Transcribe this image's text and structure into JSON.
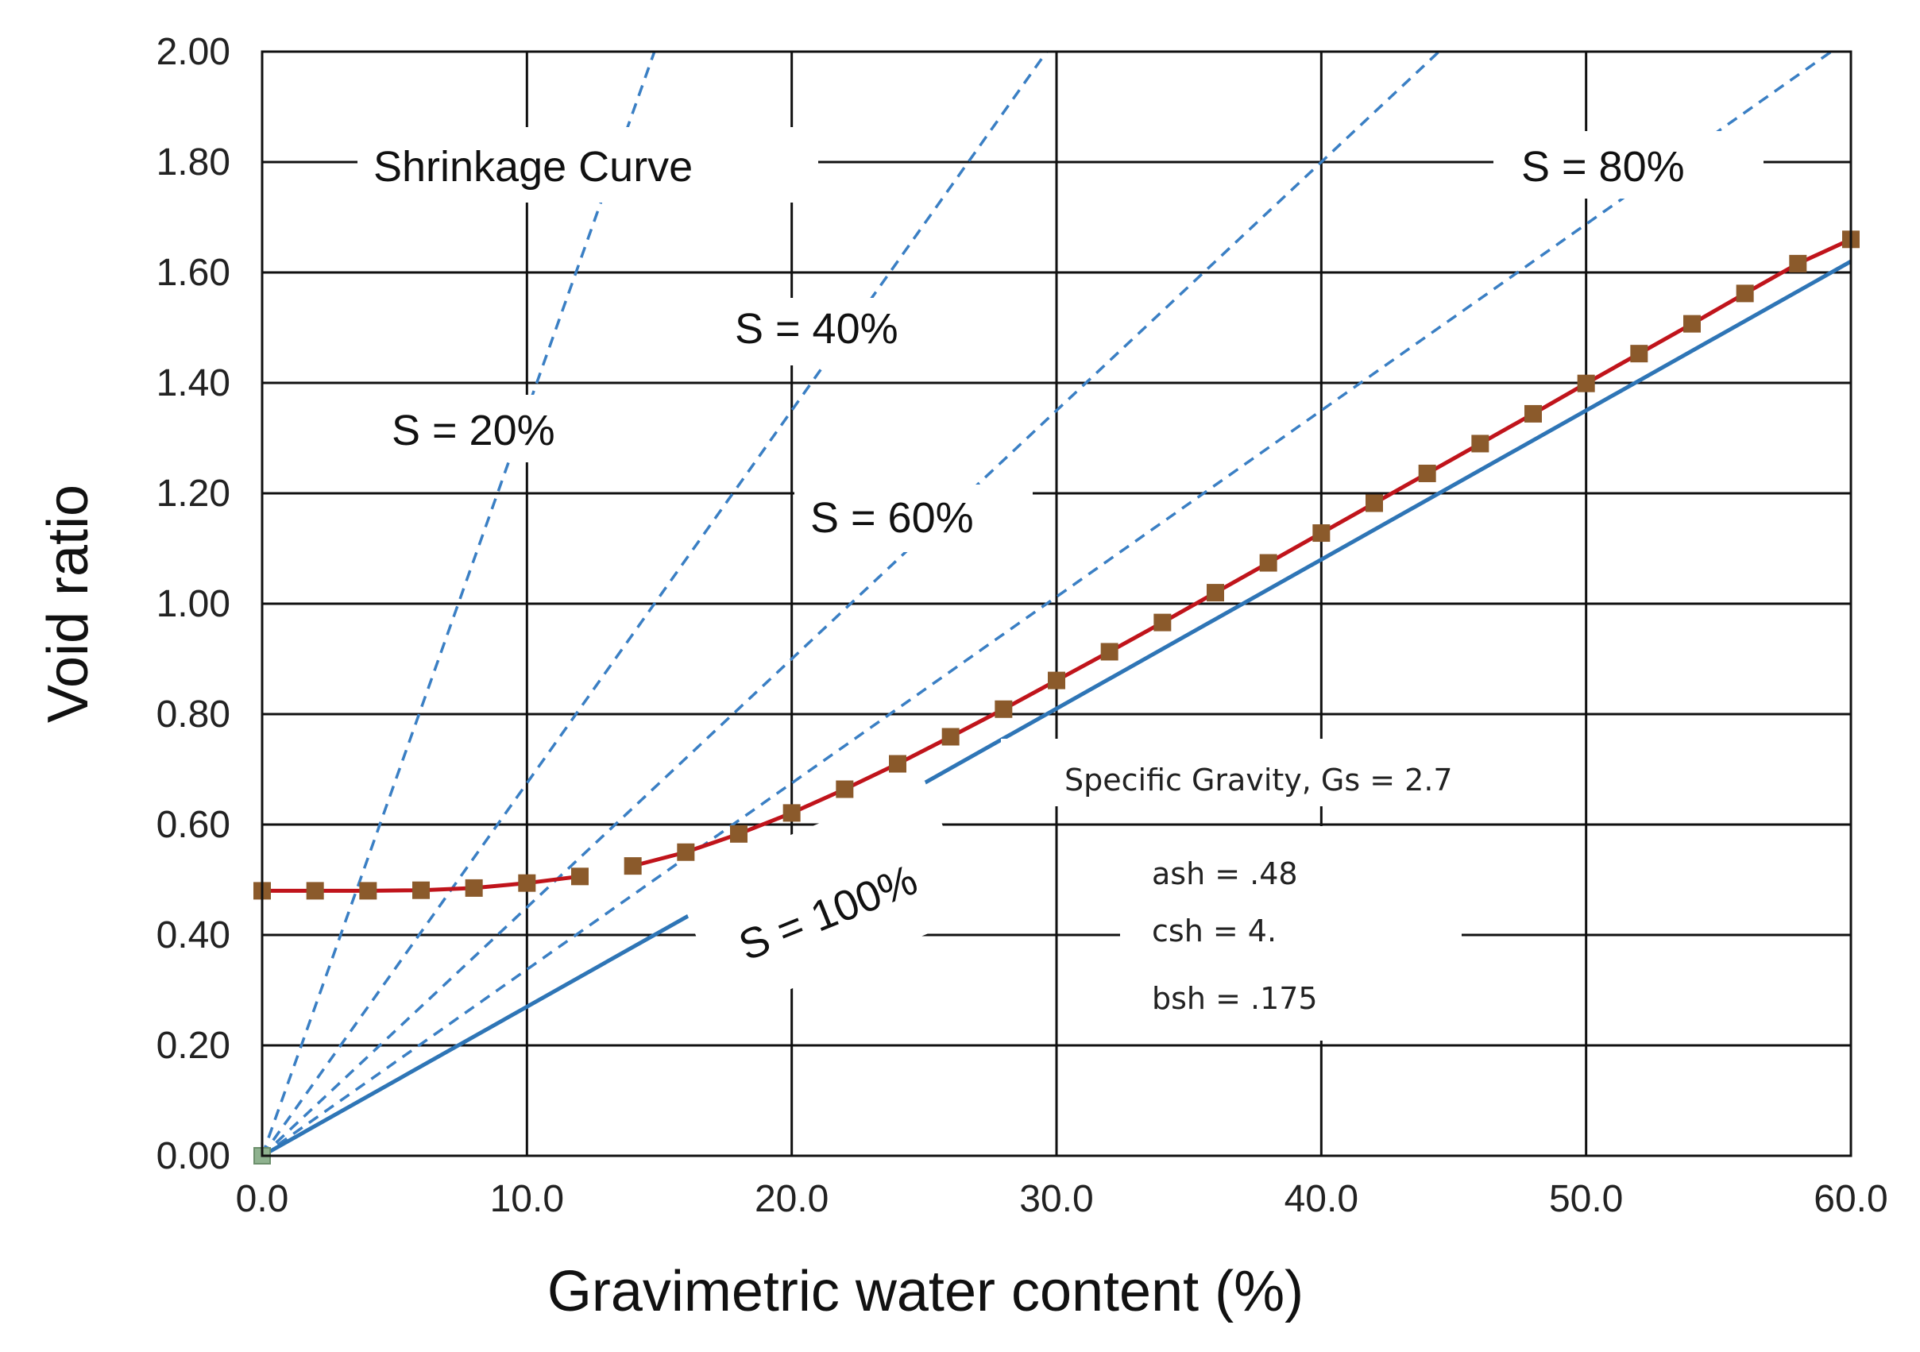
{
  "chart_data": {
    "type": "line",
    "title": "Shrinkage Curve",
    "xlabel": "Gravimetric water content (%)",
    "ylabel": "Void ratio",
    "xlim": [
      0,
      60
    ],
    "ylim": [
      0,
      2
    ],
    "x_ticks": [
      "0.0",
      "10.0",
      "20.0",
      "30.0",
      "40.0",
      "50.0",
      "60.0"
    ],
    "y_ticks": [
      "0.00",
      "0.20",
      "0.40",
      "0.60",
      "0.80",
      "1.00",
      "1.20",
      "1.40",
      "1.60",
      "1.80",
      "2.00"
    ],
    "grid": true,
    "specific_gravity": 2.7,
    "saturation_lines": [
      {
        "name": "S = 20%",
        "S": 0.2,
        "style": "dashed",
        "color": "#3a7fc4"
      },
      {
        "name": "S = 40%",
        "S": 0.4,
        "style": "dashed",
        "color": "#3a7fc4"
      },
      {
        "name": "S = 60%",
        "S": 0.6,
        "style": "dashed",
        "color": "#3a7fc4"
      },
      {
        "name": "S = 80%",
        "S": 0.8,
        "style": "dashed",
        "color": "#3a7fc4"
      },
      {
        "name": "S = 100%",
        "S": 1.0,
        "style": "solid",
        "color": "#2e75b6"
      }
    ],
    "series": [
      {
        "name": "Shrinkage curve",
        "color": "#c0141b",
        "marker_color": "#8b5a2b",
        "x": [
          0,
          2,
          4,
          6,
          8,
          10,
          12,
          14,
          16,
          18,
          20,
          22,
          24,
          26,
          28,
          30,
          32,
          34,
          36,
          38,
          40,
          42,
          44,
          46,
          48,
          50,
          52,
          54,
          56,
          58,
          60
        ],
        "y": [
          0.48,
          0.48,
          0.48,
          0.481,
          0.485,
          0.494,
          0.506,
          0.525,
          0.55,
          0.583,
          0.621,
          0.664,
          0.71,
          0.759,
          0.809,
          0.861,
          0.913,
          0.966,
          1.02,
          1.074,
          1.128,
          1.182,
          1.236,
          1.29,
          1.344,
          1.399,
          1.453,
          1.507,
          1.562,
          1.616,
          1.66
        ],
        "segments": [
          [
            0,
            6
          ],
          [
            7,
            30
          ]
        ]
      }
    ],
    "annotations": {
      "title": "Shrinkage Curve",
      "s20": "S = 20%",
      "s40": "S = 40%",
      "s60": "S = 60%",
      "s80": "S = 80%",
      "s100": "S = 100%",
      "gs": "Specific Gravity, Gs = 2.7",
      "ash": "ash = .48",
      "csh": "csh = 4.",
      "bsh": "bsh = .175"
    }
  }
}
